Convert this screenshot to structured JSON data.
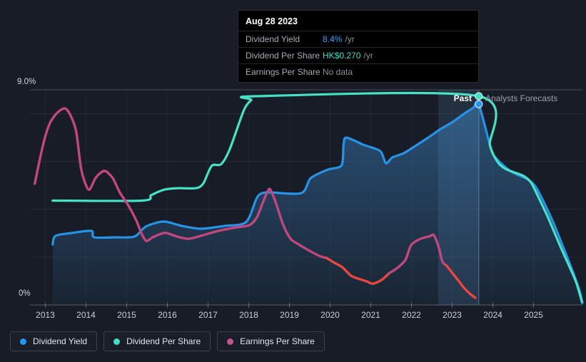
{
  "tooltip": {
    "date": "Aug 28 2023",
    "rows": [
      {
        "label": "Dividend Yield",
        "value": "8.4%",
        "suffix": "/yr",
        "color": "#3ba2ff",
        "value_style": "color:#3ba2ff"
      },
      {
        "label": "Dividend Per Share",
        "value": "HK$0.270",
        "suffix": "/yr",
        "color": "#3fdfc4",
        "value_style": "color:#3fdfc4"
      },
      {
        "label": "Earnings Per Share",
        "value": "No data",
        "suffix": "",
        "color": "#8b9097",
        "value_style": "color:#8b9097"
      }
    ]
  },
  "annotations": {
    "past": "Past",
    "forecast": "Analysts Forecasts"
  },
  "legend": [
    {
      "label": "Dividend Yield",
      "color": "#2196f3",
      "dot_style": "background:#2196f3"
    },
    {
      "label": "Dividend Per Share",
      "color": "#40e0c6",
      "dot_style": "background:#40e0c6"
    },
    {
      "label": "Earnings Per Share",
      "color": "#c2558c",
      "dot_style": "background:#c2558c"
    }
  ],
  "chart_data": {
    "type": "line",
    "title": "",
    "x_axis": {
      "ticks": [
        2013,
        2014,
        2015,
        2016,
        2017,
        2018,
        2019,
        2020,
        2021,
        2022,
        2023,
        2024,
        2025
      ],
      "range": [
        2012.6,
        2026.3
      ]
    },
    "y_axis": {
      "top_label": "9.0%",
      "bottom_label": "0%",
      "range_pct": [
        0,
        9
      ],
      "minor_gridlines_pct": [
        2,
        4,
        6,
        8
      ],
      "top_gridline_pct": 9
    },
    "today": {
      "year": 2023.655,
      "date_label": "Aug 28 2023"
    },
    "highlight_band_years": [
      2022.655,
      2023.655
    ],
    "markers": [
      {
        "series": "Dividend Per Share",
        "axis": "hkd",
        "year": 2023.655,
        "value": 0.27,
        "color": "#40e0c6"
      },
      {
        "series": "Dividend Yield",
        "axis": "pct",
        "year": 2023.655,
        "value": 8.4,
        "color": "#2196f3"
      }
    ],
    "series": [
      {
        "name": "Dividend Yield",
        "units": "%",
        "axis": "pct",
        "color": "#2793e6",
        "area": true,
        "points": [
          [
            2013.18,
            2.53
          ],
          [
            2013.25,
            2.89
          ],
          [
            2013.65,
            3.01
          ],
          [
            2014.13,
            3.1
          ],
          [
            2014.2,
            2.83
          ],
          [
            2014.71,
            2.83
          ],
          [
            2015.19,
            2.86
          ],
          [
            2015.47,
            3.28
          ],
          [
            2015.91,
            3.49
          ],
          [
            2016.35,
            3.31
          ],
          [
            2016.82,
            3.19
          ],
          [
            2017.41,
            3.31
          ],
          [
            2017.93,
            3.46
          ],
          [
            2018.18,
            4.41
          ],
          [
            2018.29,
            4.65
          ],
          [
            2018.5,
            4.71
          ],
          [
            2019.29,
            4.68
          ],
          [
            2019.52,
            5.3
          ],
          [
            2019.94,
            5.66
          ],
          [
            2020.28,
            5.84
          ],
          [
            2020.33,
            6.7
          ],
          [
            2020.4,
            7.0
          ],
          [
            2020.82,
            6.7
          ],
          [
            2021.23,
            6.44
          ],
          [
            2021.37,
            5.93
          ],
          [
            2021.53,
            6.17
          ],
          [
            2021.81,
            6.35
          ],
          [
            2022.11,
            6.67
          ],
          [
            2022.41,
            7.0
          ],
          [
            2022.69,
            7.33
          ],
          [
            2022.99,
            7.63
          ],
          [
            2023.26,
            7.96
          ],
          [
            2023.52,
            8.25
          ],
          [
            2023.655,
            8.4
          ],
          [
            2023.96,
            6.5
          ],
          [
            2024.08,
            6.14
          ],
          [
            2024.22,
            5.9
          ],
          [
            2024.43,
            5.6
          ],
          [
            2024.64,
            5.42
          ],
          [
            2024.87,
            5.24
          ],
          [
            2025.05,
            4.95
          ],
          [
            2025.23,
            4.38
          ],
          [
            2025.46,
            3.55
          ],
          [
            2025.69,
            2.59
          ],
          [
            2025.93,
            1.55
          ],
          [
            2026.13,
            0.6
          ],
          [
            2026.2,
            0.08
          ]
        ]
      },
      {
        "name": "Dividend Per Share",
        "units": "HK$",
        "axis": "hkd",
        "color": "#47e2c5",
        "area": false,
        "points": [
          [
            2013.18,
            0.135
          ],
          [
            2015.38,
            0.135
          ],
          [
            2015.6,
            0.142
          ],
          [
            2015.91,
            0.149
          ],
          [
            2016.24,
            0.151
          ],
          [
            2016.7,
            0.151
          ],
          [
            2016.88,
            0.157
          ],
          [
            2017.09,
            0.18
          ],
          [
            2017.32,
            0.182
          ],
          [
            2017.53,
            0.201
          ],
          [
            2017.88,
            0.252
          ],
          [
            2018.06,
            0.265
          ],
          [
            2018.18,
            0.27
          ],
          [
            2023.655,
            0.27
          ],
          [
            2023.93,
            0.206
          ],
          [
            2024.13,
            0.184
          ],
          [
            2024.31,
            0.176
          ],
          [
            2024.5,
            0.172
          ],
          [
            2024.75,
            0.167
          ],
          [
            2024.93,
            0.159
          ],
          [
            2025.04,
            0.148
          ],
          [
            2025.16,
            0.135
          ],
          [
            2025.34,
            0.115
          ],
          [
            2025.52,
            0.093
          ],
          [
            2025.69,
            0.072
          ],
          [
            2025.87,
            0.051
          ],
          [
            2026.05,
            0.029
          ],
          [
            2026.19,
            0.004
          ]
        ]
      },
      {
        "name": "Earnings Per Share",
        "units": "unlabeled (no axis shown)",
        "axis": "pct",
        "area": false,
        "segments": [
          {
            "color": "#c2477f",
            "points": [
              [
                2012.74,
                5.07
              ],
              [
                2012.86,
                6.05
              ],
              [
                2012.98,
                6.94
              ],
              [
                2013.12,
                7.63
              ],
              [
                2013.3,
                8.05
              ],
              [
                2013.48,
                8.22
              ],
              [
                2013.62,
                7.93
              ],
              [
                2013.76,
                7.24
              ],
              [
                2013.88,
                5.69
              ],
              [
                2014.0,
                5.01
              ],
              [
                2014.09,
                4.83
              ],
              [
                2014.23,
                5.3
              ],
              [
                2014.37,
                5.54
              ],
              [
                2014.48,
                5.6
              ],
              [
                2014.66,
                5.3
              ],
              [
                2014.83,
                4.71
              ],
              [
                2015.06,
                4.11
              ],
              [
                2015.24,
                3.52
              ],
              [
                2015.36,
                3.01
              ],
              [
                2015.48,
                2.68
              ],
              [
                2015.64,
                2.83
              ],
              [
                2015.85,
                2.98
              ],
              [
                2015.98,
                3.01
              ],
              [
                2016.24,
                2.86
              ],
              [
                2016.52,
                2.77
              ],
              [
                2016.82,
                2.89
              ],
              [
                2017.12,
                3.04
              ],
              [
                2017.41,
                3.16
              ],
              [
                2017.71,
                3.25
              ],
              [
                2018.02,
                3.34
              ],
              [
                2018.2,
                3.67
              ],
              [
                2018.34,
                4.26
              ],
              [
                2018.46,
                4.74
              ],
              [
                2018.53,
                4.83
              ],
              [
                2018.67,
                4.26
              ],
              [
                2018.85,
                3.34
              ],
              [
                2019.03,
                2.77
              ],
              [
                2019.2,
                2.56
              ],
              [
                2019.52,
                2.24
              ],
              [
                2019.77,
                2.03
              ],
              [
                2019.91,
                1.97
              ]
            ]
          },
          {
            "color": "#e94740",
            "points": [
              [
                2019.91,
                1.97
              ],
              [
                2020.08,
                1.79
              ],
              [
                2020.3,
                1.58
              ],
              [
                2020.52,
                1.22
              ],
              [
                2020.75,
                1.07
              ],
              [
                2020.91,
                0.98
              ],
              [
                2021.05,
                0.89
              ],
              [
                2021.26,
                1.04
              ],
              [
                2021.46,
                1.34
              ]
            ]
          },
          {
            "color": "#c2477f",
            "points": [
              [
                2021.46,
                1.34
              ],
              [
                2021.63,
                1.52
              ],
              [
                2021.85,
                1.88
              ],
              [
                2021.99,
                2.5
              ],
              [
                2022.2,
                2.75
              ],
              [
                2022.45,
                2.88
              ],
              [
                2022.55,
                2.92
              ],
              [
                2022.66,
                2.47
              ],
              [
                2022.76,
                1.82
              ],
              [
                2022.85,
                1.67
              ]
            ]
          },
          {
            "color": "#e94740",
            "points": [
              [
                2022.85,
                1.67
              ],
              [
                2022.99,
                1.37
              ],
              [
                2023.13,
                1.07
              ],
              [
                2023.29,
                0.72
              ],
              [
                2023.43,
                0.48
              ],
              [
                2023.57,
                0.3
              ]
            ]
          }
        ]
      }
    ]
  }
}
